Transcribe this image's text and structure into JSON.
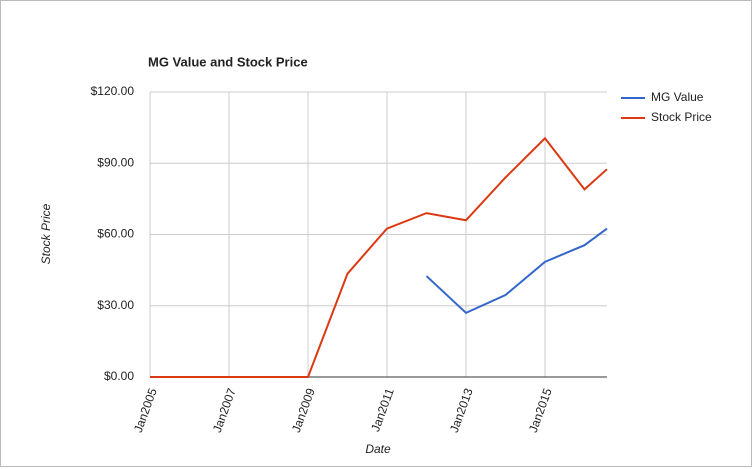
{
  "chart_data": {
    "type": "line",
    "title": "MG Value and Stock Price",
    "x_label": "Date",
    "y_label": "Stock Price",
    "x": [
      2005,
      2006,
      2007,
      2008,
      2009,
      2010,
      2011,
      2012,
      2013,
      2014,
      2015,
      2016,
      2016.57
    ],
    "series": [
      {
        "name": "MG Value",
        "color": "#3366cc",
        "values": [
          null,
          null,
          null,
          null,
          null,
          null,
          null,
          42.5,
          27,
          34.5,
          48.5,
          55.5,
          62.5
        ]
      },
      {
        "name": "Stock Price",
        "color": "#dc3912",
        "values": [
          0,
          0,
          0,
          0,
          0,
          43.5,
          62.5,
          69,
          66,
          84,
          100.5,
          79,
          87.5
        ]
      }
    ],
    "xlim": [
      2005,
      2016.57
    ],
    "xticks": [
      {
        "value": 2005,
        "label": "Jan2005"
      },
      {
        "value": 2007,
        "label": "Jan2007"
      },
      {
        "value": 2009,
        "label": "Jan2009"
      },
      {
        "value": 2011,
        "label": "Jan2011"
      },
      {
        "value": 2013,
        "label": "Jan2013"
      },
      {
        "value": 2015,
        "label": "Jan2015"
      }
    ],
    "ylim": [
      0,
      120
    ],
    "yticks": [
      {
        "value": 0,
        "label": "$0.00"
      },
      {
        "value": 30,
        "label": "$30.00"
      },
      {
        "value": 60,
        "label": "$60.00"
      },
      {
        "value": 90,
        "label": "$90.00"
      },
      {
        "value": 120,
        "label": "$120.00"
      }
    ],
    "grid": true,
    "legend": "right"
  }
}
